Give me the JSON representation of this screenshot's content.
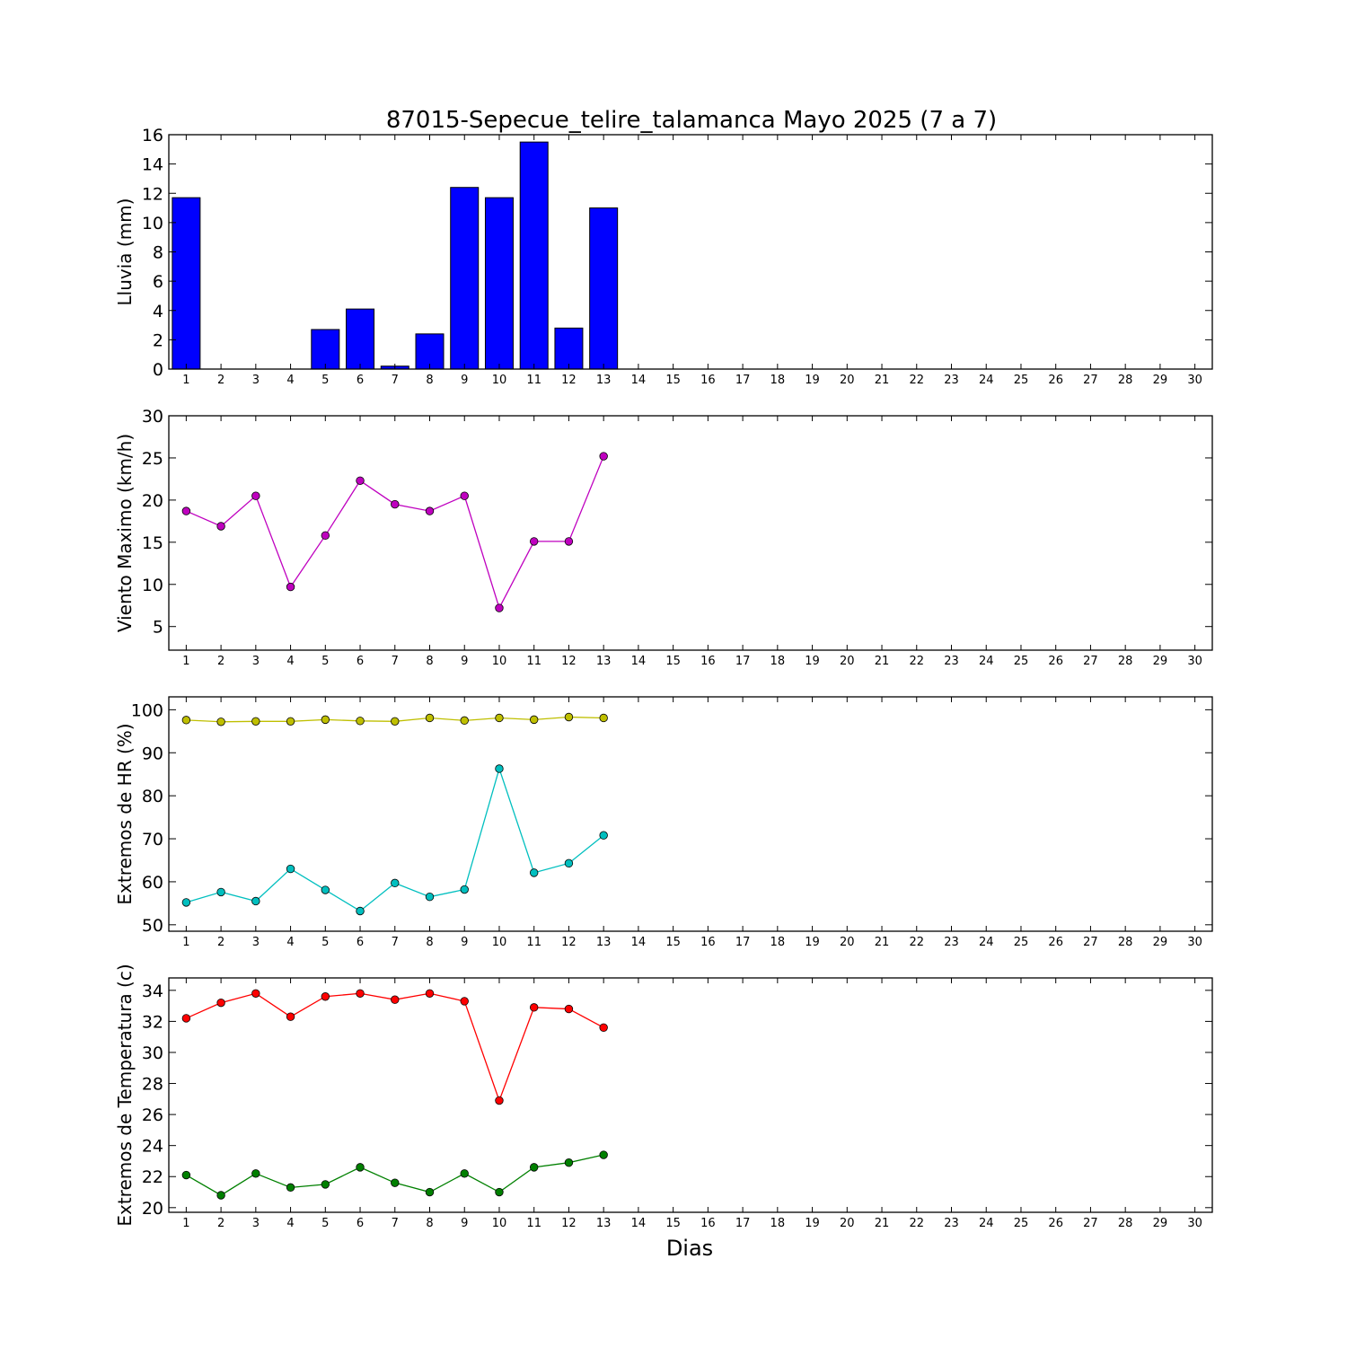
{
  "figure": {
    "title": "87015-Sepecue_telire_talamanca Mayo 2025  (7 a 7)",
    "xlabel": "Dias"
  },
  "chart_data": [
    {
      "type": "bar",
      "ylabel": "Lluvia (mm)",
      "ylim": [
        0,
        16
      ],
      "yticks": [
        0,
        2,
        4,
        6,
        8,
        10,
        12,
        14,
        16
      ],
      "xlim": [
        0.5,
        30.5
      ],
      "xticks": [
        1,
        2,
        3,
        4,
        5,
        6,
        7,
        8,
        9,
        10,
        11,
        12,
        13,
        14,
        15,
        16,
        17,
        18,
        19,
        20,
        21,
        22,
        23,
        24,
        25,
        26,
        27,
        28,
        29,
        30
      ],
      "grid": false,
      "series": [
        {
          "color": "#0000ff",
          "x": [
            1,
            2,
            3,
            4,
            5,
            6,
            7,
            8,
            9,
            10,
            11,
            12,
            13,
            14,
            15,
            16,
            17,
            18,
            19,
            20,
            21,
            22,
            23,
            24,
            25,
            26,
            27,
            28,
            29,
            30
          ],
          "values": [
            11.7,
            0,
            0,
            0,
            2.7,
            4.1,
            0.2,
            2.4,
            12.4,
            11.7,
            15.5,
            2.8,
            11.0,
            0,
            0,
            0,
            0,
            0,
            0,
            0,
            0,
            0,
            0,
            0,
            0,
            0,
            0,
            0,
            0,
            0
          ]
        }
      ]
    },
    {
      "type": "line",
      "ylabel": "Viento Maximo (km/h)",
      "ylim": [
        2.2,
        30
      ],
      "yticks": [
        5,
        10,
        15,
        20,
        25,
        30
      ],
      "xlim": [
        0.5,
        30.5
      ],
      "xticks": [
        1,
        2,
        3,
        4,
        5,
        6,
        7,
        8,
        9,
        10,
        11,
        12,
        13,
        14,
        15,
        16,
        17,
        18,
        19,
        20,
        21,
        22,
        23,
        24,
        25,
        26,
        27,
        28,
        29,
        30
      ],
      "grid": false,
      "series": [
        {
          "color": "#bf00bf",
          "x": [
            1,
            2,
            3,
            4,
            5,
            6,
            7,
            8,
            9,
            10,
            11,
            12,
            13
          ],
          "values": [
            18.7,
            16.9,
            20.5,
            9.7,
            15.8,
            22.3,
            19.5,
            18.7,
            20.5,
            7.2,
            15.1,
            15.1,
            25.2
          ]
        }
      ]
    },
    {
      "type": "line",
      "ylabel": "Extremos de HR (%)",
      "ylim": [
        48.5,
        103
      ],
      "yticks": [
        50,
        60,
        70,
        80,
        90,
        100
      ],
      "xlim": [
        0.5,
        30.5
      ],
      "xticks": [
        1,
        2,
        3,
        4,
        5,
        6,
        7,
        8,
        9,
        10,
        11,
        12,
        13,
        14,
        15,
        16,
        17,
        18,
        19,
        20,
        21,
        22,
        23,
        24,
        25,
        26,
        27,
        28,
        29,
        30
      ],
      "grid": false,
      "series": [
        {
          "color": "#bfbf00",
          "x": [
            1,
            2,
            3,
            4,
            5,
            6,
            7,
            8,
            9,
            10,
            11,
            12,
            13
          ],
          "values": [
            97.6,
            97.2,
            97.3,
            97.3,
            97.7,
            97.4,
            97.3,
            98.1,
            97.5,
            98.1,
            97.7,
            98.3,
            98.1
          ]
        },
        {
          "color": "#00bfbf",
          "x": [
            1,
            2,
            3,
            4,
            5,
            6,
            7,
            8,
            9,
            10,
            11,
            12,
            13
          ],
          "values": [
            55.2,
            57.6,
            55.5,
            63.0,
            58.1,
            53.2,
            59.7,
            56.5,
            58.2,
            86.3,
            62.1,
            64.3,
            70.8
          ]
        }
      ]
    },
    {
      "type": "line",
      "ylabel": "Extremos de Temperatura (c)",
      "ylim": [
        19.7,
        34.8
      ],
      "yticks": [
        20,
        22,
        24,
        26,
        28,
        30,
        32,
        34
      ],
      "xlim": [
        0.5,
        30.5
      ],
      "xticks": [
        1,
        2,
        3,
        4,
        5,
        6,
        7,
        8,
        9,
        10,
        11,
        12,
        13,
        14,
        15,
        16,
        17,
        18,
        19,
        20,
        21,
        22,
        23,
        24,
        25,
        26,
        27,
        28,
        29,
        30
      ],
      "grid": false,
      "series": [
        {
          "color": "#ff0000",
          "x": [
            1,
            2,
            3,
            4,
            5,
            6,
            7,
            8,
            9,
            10,
            11,
            12,
            13
          ],
          "values": [
            32.2,
            33.2,
            33.8,
            32.3,
            33.6,
            33.8,
            33.4,
            33.8,
            33.3,
            26.9,
            32.9,
            32.8,
            31.6
          ]
        },
        {
          "color": "#008000",
          "x": [
            1,
            2,
            3,
            4,
            5,
            6,
            7,
            8,
            9,
            10,
            11,
            12,
            13
          ],
          "values": [
            22.1,
            20.8,
            22.2,
            21.3,
            21.5,
            22.6,
            21.6,
            21.0,
            22.2,
            21.0,
            22.6,
            22.9,
            23.4
          ]
        }
      ]
    }
  ]
}
